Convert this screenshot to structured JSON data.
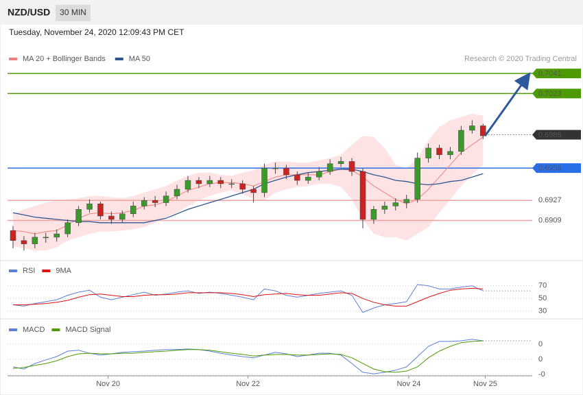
{
  "header": {
    "symbol": "NZD/USD",
    "timeframe": "30 MIN",
    "date": "Tuesday, November 24, 2020 12:09:43 PM CET",
    "credit": "Research © 2020 Trading Central"
  },
  "chart_data": [
    {
      "type": "candlestick",
      "up_color": "#3a9a2a",
      "down_color": "#cc2222",
      "xlim": [
        -0.5,
        47.5
      ],
      "xticks": [
        {
          "value": 8.7,
          "label": "Nov 20"
        },
        {
          "value": 21.5,
          "label": "Nov 22"
        },
        {
          "value": 36.2,
          "label": "Nov 24"
        },
        {
          "value": 43.2,
          "label": "Nov 25"
        }
      ],
      "ylim": [
        0.6873,
        0.707
      ],
      "open": [
        0.69,
        0.6891,
        0.6888,
        0.6894,
        0.6894,
        0.6897,
        0.6907,
        0.6919,
        0.6924,
        0.6913,
        0.691,
        0.6915,
        0.6922,
        0.6927,
        0.6925,
        0.6931,
        0.6937,
        0.6945,
        0.6942,
        0.6945,
        0.6942,
        0.6942,
        0.6937,
        0.6934,
        0.6956,
        0.6956,
        0.695,
        0.6945,
        0.6948,
        0.6953,
        0.696,
        0.6962,
        0.6953,
        0.691,
        0.6919,
        0.6922,
        0.6925,
        0.6928,
        0.6965,
        0.6974,
        0.6968,
        0.6971,
        0.699,
        0.6994
      ],
      "high": [
        0.6904,
        0.6895,
        0.6898,
        0.6898,
        0.6901,
        0.691,
        0.6922,
        0.6928,
        0.6926,
        0.6917,
        0.6918,
        0.6926,
        0.693,
        0.6931,
        0.6935,
        0.6941,
        0.6949,
        0.6948,
        0.6949,
        0.6948,
        0.6946,
        0.6945,
        0.694,
        0.696,
        0.6961,
        0.6959,
        0.6953,
        0.6952,
        0.6957,
        0.6964,
        0.6966,
        0.6965,
        0.6956,
        0.6922,
        0.6926,
        0.6929,
        0.6932,
        0.697,
        0.6978,
        0.6977,
        0.6975,
        0.6994,
        0.6999,
        0.6996
      ],
      "low": [
        0.6884,
        0.6882,
        0.6884,
        0.6889,
        0.689,
        0.6894,
        0.6904,
        0.6916,
        0.691,
        0.6906,
        0.6907,
        0.6912,
        0.6919,
        0.6921,
        0.6922,
        0.6928,
        0.6934,
        0.6938,
        0.6939,
        0.6938,
        0.6938,
        0.6933,
        0.6925,
        0.693,
        0.6951,
        0.6946,
        0.6941,
        0.6942,
        0.6945,
        0.695,
        0.6957,
        0.6949,
        0.6902,
        0.6906,
        0.6915,
        0.6918,
        0.692,
        0.6925,
        0.6961,
        0.6964,
        0.6964,
        0.6968,
        0.6987,
        0.6982
      ],
      "close": [
        0.6891,
        0.6888,
        0.6894,
        0.6894,
        0.6897,
        0.6907,
        0.6919,
        0.6924,
        0.6913,
        0.691,
        0.6915,
        0.6922,
        0.6927,
        0.6925,
        0.6931,
        0.6937,
        0.6945,
        0.6942,
        0.6945,
        0.6942,
        0.6942,
        0.6937,
        0.6934,
        0.6956,
        0.6956,
        0.695,
        0.6945,
        0.6948,
        0.6953,
        0.696,
        0.6962,
        0.6953,
        0.691,
        0.6919,
        0.6922,
        0.6925,
        0.6928,
        0.6965,
        0.6974,
        0.6968,
        0.6971,
        0.699,
        0.6994,
        0.6985
      ],
      "series": [
        {
          "name": "MA 20 + Bollinger Bands",
          "color": "#f08080",
          "band_color": "#fde3e3",
          "values": [
            0.69,
            0.6899,
            0.6897,
            0.6899,
            0.69,
            0.6905,
            0.6911,
            0.6915,
            0.6916,
            0.6915,
            0.6916,
            0.6918,
            0.6922,
            0.6923,
            0.6926,
            0.6931,
            0.6936,
            0.6939,
            0.6942,
            0.6943,
            0.6943,
            0.6942,
            0.694,
            0.6944,
            0.6948,
            0.695,
            0.695,
            0.695,
            0.695,
            0.6953,
            0.6955,
            0.6954,
            0.6948,
            0.694,
            0.6934,
            0.6928,
            0.6924,
            0.6928,
            0.6937,
            0.6948,
            0.6959,
            0.697,
            0.6977,
            0.6984
          ],
          "upper": [
            0.6915,
            0.6919,
            0.6922,
            0.6925,
            0.6927,
            0.6928,
            0.6929,
            0.6931,
            0.6931,
            0.693,
            0.6929,
            0.6931,
            0.6934,
            0.6937,
            0.694,
            0.6945,
            0.6949,
            0.6952,
            0.6952,
            0.695,
            0.6949,
            0.6952,
            0.6954,
            0.6959,
            0.6962,
            0.6962,
            0.6961,
            0.6961,
            0.6963,
            0.6965,
            0.6968,
            0.6977,
            0.6985,
            0.6984,
            0.6974,
            0.6959,
            0.6956,
            0.6965,
            0.6981,
            0.6993,
            0.6999,
            0.7002,
            0.7005,
            0.7003
          ],
          "lower": [
            0.6886,
            0.6884,
            0.6882,
            0.6882,
            0.6885,
            0.6891,
            0.6894,
            0.6897,
            0.6899,
            0.6899,
            0.69,
            0.6901,
            0.6903,
            0.6907,
            0.6912,
            0.6916,
            0.6922,
            0.6927,
            0.6931,
            0.6934,
            0.6936,
            0.6933,
            0.6928,
            0.6927,
            0.6934,
            0.6937,
            0.6939,
            0.694,
            0.6942,
            0.6942,
            0.6939,
            0.6928,
            0.691,
            0.6897,
            0.6894,
            0.6894,
            0.6891,
            0.6897,
            0.6903,
            0.6916,
            0.6928,
            0.694,
            0.695,
            0.6959
          ]
        },
        {
          "name": "MA 50",
          "color": "#2f5590",
          "values": [
            0.6916,
            0.6914,
            0.6912,
            0.6911,
            0.691,
            0.6909,
            0.6908,
            0.6908,
            0.6907,
            0.6907,
            0.6907,
            0.6907,
            0.6907,
            0.6909,
            0.6911,
            0.6915,
            0.6919,
            0.6922,
            0.6925,
            0.6928,
            0.6931,
            0.6934,
            0.6937,
            0.6942,
            0.6945,
            0.6948,
            0.695,
            0.6952,
            0.6953,
            0.6954,
            0.6955,
            0.6955,
            0.6953,
            0.695,
            0.6948,
            0.6945,
            0.6944,
            0.6942,
            0.6941,
            0.6942,
            0.6944,
            0.6945,
            0.6948,
            0.6951
          ]
        }
      ],
      "levels": [
        {
          "value": 0.7041,
          "color": "#4e9a06",
          "line": "solid",
          "label": "box"
        },
        {
          "value": 0.7023,
          "color": "#4e9a06",
          "line": "solid",
          "label": "box"
        },
        {
          "value": 0.6986,
          "color": "#333333",
          "line": "dotted",
          "label": "box"
        },
        {
          "value": 0.6956,
          "color": "#2a6fe8",
          "line": "solid",
          "label": "box"
        },
        {
          "value": 0.6927,
          "color": "#f0a0a0",
          "line": "solid",
          "label": "plain",
          "text_color": "#dd1111"
        },
        {
          "value": 0.6909,
          "color": "#f0a0a0",
          "line": "solid",
          "label": "plain",
          "text_color": "#dd1111"
        }
      ],
      "arrow_color": "#2d5a9c"
    },
    {
      "type": "line",
      "ylim": [
        20,
        100
      ],
      "yticks": [
        30,
        50,
        70
      ],
      "series": [
        {
          "name": "RSI",
          "color": "#5b7fd8",
          "values": [
            40,
            38,
            42,
            45,
            48,
            55,
            60,
            63,
            52,
            48,
            52,
            56,
            60,
            55,
            57,
            60,
            62,
            58,
            60,
            58,
            55,
            52,
            48,
            65,
            62,
            55,
            52,
            55,
            58,
            60,
            62,
            55,
            28,
            35,
            40,
            42,
            45,
            72,
            70,
            65,
            65,
            68,
            70,
            62
          ]
        },
        {
          "name": "9MA",
          "color": "#e01010",
          "values": [
            40,
            40,
            41,
            42,
            44,
            47,
            52,
            56,
            57,
            55,
            53,
            53,
            55,
            56,
            56,
            57,
            59,
            59,
            59,
            59,
            58,
            56,
            53,
            56,
            57,
            58,
            56,
            55,
            55,
            57,
            59,
            58,
            50,
            44,
            40,
            38,
            38,
            45,
            52,
            58,
            63,
            65,
            66,
            65
          ]
        }
      ]
    },
    {
      "type": "line",
      "ylim": [
        -0.0005,
        0.0012
      ],
      "yticks": [
        {
          "value": 0.0005,
          "label": "0"
        },
        0,
        {
          "value": -0.0005,
          "label": "-0"
        }
      ],
      "series": [
        {
          "name": "MACD",
          "color": "#5b7fd8",
          "values": [
            -0.00025,
            -0.00032,
            -0.00014,
            -2e-05,
            9e-05,
            0.00027,
            0.0003,
            0.0002,
            0.00014,
            0.00018,
            0.00023,
            0.00025,
            0.00027,
            0.0003,
            0.00032,
            0.00032,
            0.00034,
            0.00032,
            0.00027,
            0.0002,
            0.00014,
            9e-05,
            5e-05,
            0.00014,
            0.00023,
            0.00018,
            9e-05,
            0.00014,
            0.0002,
            0.0002,
            0.00014,
            -0.00014,
            -0.00043,
            -0.00048,
            -0.00043,
            -0.00036,
            -0.00025,
            9e-05,
            0.00043,
            0.00059,
            0.00059,
            0.00061,
            0.00066,
            0.00061
          ]
        },
        {
          "name": "MACD Signal",
          "color": "#4e9a06",
          "values": [
            -0.0003,
            -0.00027,
            -0.0002,
            -0.00014,
            -5e-05,
            9e-05,
            0.00018,
            0.0002,
            0.00018,
            0.00018,
            0.0002,
            0.0002,
            0.00023,
            0.00025,
            0.00027,
            0.0003,
            0.00032,
            0.00032,
            0.0003,
            0.00025,
            0.0002,
            0.00016,
            0.00011,
            0.00014,
            0.00016,
            0.00016,
            0.00014,
            0.00014,
            0.00016,
            0.00018,
            0.00016,
            5e-05,
            -0.00014,
            -0.00032,
            -0.00041,
            -0.00043,
            -0.00039,
            -0.00025,
            5e-05,
            0.00027,
            0.00043,
            0.00055,
            0.00059,
            0.00061
          ]
        }
      ]
    }
  ]
}
